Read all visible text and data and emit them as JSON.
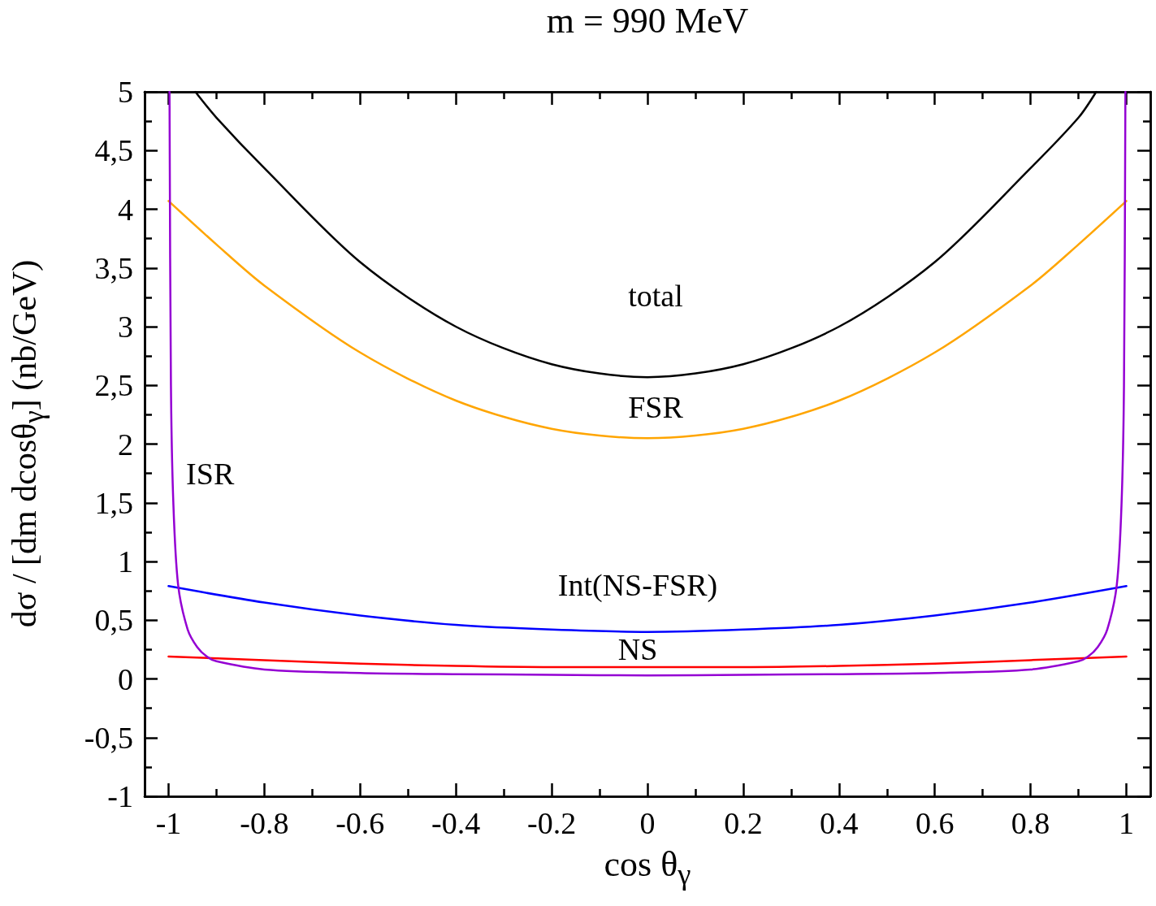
{
  "chart_data": {
    "type": "line",
    "title": "m = 990 MeV",
    "xlabel": "cos  θ$_{γ}$",
    "ylabel": "dσ / [dm dcosθ$_{γ}$]  (nb/GeV)",
    "xlim": [
      -1.05,
      1.05
    ],
    "ylim": [
      -1,
      5
    ],
    "xticks": [
      -1,
      {
        "value": -0.9,
        "label": null
      },
      -0.8,
      {
        "value": -0.7,
        "label": null
      },
      -0.6,
      {
        "value": -0.5,
        "label": null
      },
      -0.4,
      {
        "value": -0.3,
        "label": null
      },
      -0.2,
      {
        "value": -0.1,
        "label": null
      },
      0,
      {
        "value": 0.1,
        "label": null
      },
      0.2,
      {
        "value": 0.3,
        "label": null
      },
      0.4,
      {
        "value": 0.5,
        "label": null
      },
      0.6,
      {
        "value": 0.7,
        "label": null
      },
      0.8,
      {
        "value": 0.9,
        "label": null
      },
      1
    ],
    "yticks": [
      -1,
      {
        "value": -0.75,
        "label": null
      },
      {
        "value": -0.5,
        "label": "-0,5"
      },
      {
        "value": -0.25,
        "label": null
      },
      0,
      {
        "value": 0.25,
        "label": null
      },
      {
        "value": 0.5,
        "label": "0,5"
      },
      {
        "value": 0.75,
        "label": null
      },
      1,
      {
        "value": 1.25,
        "label": null
      },
      {
        "value": 1.5,
        "label": "1,5"
      },
      {
        "value": 1.75,
        "label": null
      },
      2,
      {
        "value": 2.25,
        "label": null
      },
      {
        "value": 2.5,
        "label": "2,5"
      },
      {
        "value": 2.75,
        "label": null
      },
      3,
      {
        "value": 3.25,
        "label": null
      },
      {
        "value": 3.5,
        "label": "3,5"
      },
      {
        "value": 3.75,
        "label": null
      },
      4,
      {
        "value": 4.25,
        "label": null
      },
      {
        "value": 4.5,
        "label": "4,5"
      },
      {
        "value": 4.75,
        "label": null
      },
      5
    ],
    "legend": false,
    "marker": "none",
    "line_style": "solid",
    "series": [
      {
        "name": "total",
        "color": "#000000",
        "x": [
          -0.944,
          -0.9,
          -0.8,
          -0.6,
          -0.4,
          -0.2,
          0,
          0.2,
          0.4,
          0.6,
          0.8,
          0.9,
          0.937
        ],
        "values": [
          5,
          4.78,
          4.35,
          3.55,
          3.0,
          2.68,
          2.57,
          2.68,
          3.0,
          3.55,
          4.35,
          4.78,
          5
        ]
      },
      {
        "name": "FSR",
        "color": "#ffa500",
        "x": [
          -1,
          -0.9,
          -0.8,
          -0.6,
          -0.4,
          -0.2,
          0,
          0.2,
          0.4,
          0.6,
          0.8,
          0.9,
          1
        ],
        "values": [
          4.07,
          3.7,
          3.35,
          2.78,
          2.37,
          2.13,
          2.05,
          2.13,
          2.37,
          2.78,
          3.35,
          3.7,
          4.07
        ]
      },
      {
        "name": "Int(NS-FSR)",
        "color": "#0000ff",
        "x": [
          -1,
          -0.8,
          -0.6,
          -0.4,
          -0.2,
          0,
          0.2,
          0.4,
          0.6,
          0.8,
          1
        ],
        "values": [
          0.79,
          0.65,
          0.54,
          0.46,
          0.42,
          0.4,
          0.42,
          0.46,
          0.54,
          0.65,
          0.79
        ]
      },
      {
        "name": "NS",
        "color": "#ff0000",
        "x": [
          -1,
          -0.8,
          -0.6,
          -0.4,
          -0.2,
          0,
          0.2,
          0.4,
          0.6,
          0.8,
          1
        ],
        "values": [
          0.19,
          0.16,
          0.13,
          0.11,
          0.1,
          0.1,
          0.1,
          0.11,
          0.13,
          0.16,
          0.19
        ]
      },
      {
        "name": "ISR",
        "color": "#9400d3",
        "x": [
          -0.998,
          -0.995,
          -0.99,
          -0.98,
          -0.96,
          -0.94,
          -0.92,
          -0.9,
          -0.8,
          -0.6,
          -0.4,
          -0.2,
          0,
          0.2,
          0.4,
          0.6,
          0.8,
          0.9,
          0.92,
          0.94,
          0.96,
          0.98,
          0.99,
          0.995,
          0.998
        ],
        "values": [
          5,
          2.5,
          1.5,
          0.8,
          0.42,
          0.27,
          0.19,
          0.15,
          0.08,
          0.05,
          0.04,
          0.035,
          0.03,
          0.035,
          0.04,
          0.05,
          0.08,
          0.15,
          0.19,
          0.27,
          0.42,
          0.8,
          1.5,
          2.5,
          5
        ]
      }
    ]
  }
}
